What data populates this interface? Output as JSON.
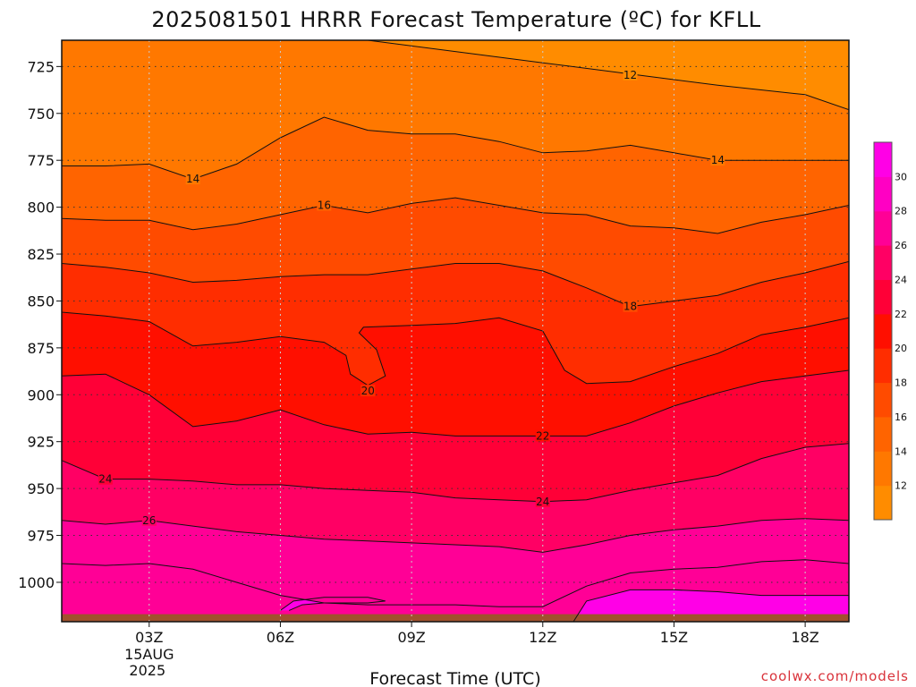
{
  "chart_data": {
    "type": "heatmap",
    "title": "2025081501 HRRR Forecast Temperature (ºC) for KFLL",
    "xlabel": "Forecast Time (UTC)",
    "ylabel": "",
    "credit": "coolwx.com/models",
    "x_ticks": [
      {
        "hour": 3,
        "label": "03Z",
        "sub1": "15AUG",
        "sub2": "2025"
      },
      {
        "hour": 6,
        "label": "06Z"
      },
      {
        "hour": 9,
        "label": "09Z"
      },
      {
        "hour": 12,
        "label": "12Z"
      },
      {
        "hour": 15,
        "label": "15Z"
      },
      {
        "hour": 18,
        "label": "18Z"
      }
    ],
    "xlim": [
      1,
      19
    ],
    "y_ticks": [
      725,
      750,
      775,
      800,
      825,
      850,
      875,
      900,
      925,
      950,
      975,
      1000
    ],
    "ylim_hpa": [
      711,
      1021
    ],
    "y_scale": "linear, pressure increasing downward",
    "grid": "dotted",
    "surface_pressure_hpa": 1017,
    "surface_color": "#a0522d",
    "contour_interval": 2,
    "colorbar": {
      "placement": "right",
      "levels": [
        10,
        12,
        14,
        16,
        18,
        20,
        22,
        24,
        26,
        28,
        30,
        32
      ],
      "labels": [
        12,
        14,
        16,
        18,
        20,
        22,
        24,
        26,
        28,
        30
      ],
      "colors": [
        "#ff8c00",
        "#ff7800",
        "#ff6400",
        "#ff4b00",
        "#ff2d00",
        "#ff0f00",
        "#ff0037",
        "#ff0064",
        "#ff0096",
        "#ff00c3",
        "#ff00e6"
      ]
    },
    "isotherms": [
      {
        "temp": 12,
        "label_at": [
          [
            14.0,
            729.5
          ]
        ],
        "points": [
          [
            4.0,
            707
          ],
          [
            6.0,
            711
          ],
          [
            8.0,
            711
          ],
          [
            10.0,
            717
          ],
          [
            12.0,
            723
          ],
          [
            14.0,
            729
          ],
          [
            16.0,
            735
          ],
          [
            18.0,
            740
          ],
          [
            19.0,
            748
          ]
        ]
      },
      {
        "temp": 14,
        "label_at": [
          [
            4.0,
            785
          ],
          [
            16.0,
            775
          ]
        ],
        "points": [
          [
            1.0,
            778
          ],
          [
            2.0,
            778
          ],
          [
            3.0,
            777
          ],
          [
            4.0,
            785
          ],
          [
            5.0,
            777
          ],
          [
            6.0,
            763
          ],
          [
            7.0,
            752
          ],
          [
            8.0,
            759
          ],
          [
            9.0,
            761
          ],
          [
            10.0,
            761
          ],
          [
            11.0,
            765
          ],
          [
            12.0,
            771
          ],
          [
            13.0,
            770
          ],
          [
            14.0,
            767
          ],
          [
            15.0,
            771
          ],
          [
            16.0,
            775
          ],
          [
            17.0,
            775
          ],
          [
            18.0,
            775
          ],
          [
            19.0,
            775
          ]
        ]
      },
      {
        "temp": 16,
        "label_at": [
          [
            7.0,
            799
          ]
        ],
        "points": [
          [
            1.0,
            806
          ],
          [
            2.0,
            807
          ],
          [
            3.0,
            807
          ],
          [
            4.0,
            812
          ],
          [
            5.0,
            809
          ],
          [
            6.0,
            804
          ],
          [
            7.0,
            799
          ],
          [
            8.0,
            803
          ],
          [
            9.0,
            798
          ],
          [
            10.0,
            795
          ],
          [
            11.0,
            799
          ],
          [
            12.0,
            803
          ],
          [
            13.0,
            804
          ],
          [
            14.0,
            810
          ],
          [
            15.0,
            811
          ],
          [
            16.0,
            814
          ],
          [
            17.0,
            808
          ],
          [
            18.0,
            804
          ],
          [
            19.0,
            799
          ]
        ]
      },
      {
        "temp": 18,
        "label_at": [
          [
            14.0,
            853
          ]
        ],
        "points": [
          [
            1.0,
            830
          ],
          [
            2.0,
            832
          ],
          [
            3.0,
            835
          ],
          [
            4.0,
            840
          ],
          [
            5.0,
            839
          ],
          [
            6.0,
            837
          ],
          [
            7.0,
            836
          ],
          [
            8.0,
            836
          ],
          [
            9.0,
            833
          ],
          [
            10.0,
            830
          ],
          [
            11.0,
            830
          ],
          [
            12.0,
            834
          ],
          [
            13.0,
            843
          ],
          [
            14.0,
            853
          ],
          [
            15.0,
            850
          ],
          [
            16.0,
            847
          ],
          [
            17.0,
            840
          ],
          [
            18.0,
            835
          ],
          [
            19.0,
            829
          ]
        ]
      },
      {
        "temp": 20,
        "label_at": [
          [
            8.0,
            898
          ]
        ],
        "points": [
          [
            1.0,
            856
          ],
          [
            2.0,
            858
          ],
          [
            3.0,
            861
          ],
          [
            4.0,
            874
          ],
          [
            5.0,
            872
          ],
          [
            6.0,
            869
          ],
          [
            7.0,
            872
          ],
          [
            7.5,
            879
          ],
          [
            7.6,
            889
          ],
          [
            8.0,
            895
          ],
          [
            8.4,
            890
          ],
          [
            8.2,
            876
          ],
          [
            7.8,
            867
          ],
          [
            7.9,
            864
          ],
          [
            9.0,
            863
          ],
          [
            10.0,
            862
          ],
          [
            11.0,
            859
          ],
          [
            12.0,
            866
          ],
          [
            12.5,
            887
          ],
          [
            13.0,
            894
          ],
          [
            14.0,
            893
          ],
          [
            15.0,
            885
          ],
          [
            16.0,
            878
          ],
          [
            17.0,
            868
          ],
          [
            18.0,
            864
          ],
          [
            19.0,
            859
          ]
        ]
      },
      {
        "temp": 22,
        "label_at": [
          [
            12.0,
            922
          ]
        ],
        "points": [
          [
            1.0,
            890
          ],
          [
            2.0,
            889
          ],
          [
            3.0,
            900
          ],
          [
            4.0,
            917
          ],
          [
            5.0,
            914
          ],
          [
            6.0,
            908
          ],
          [
            7.0,
            916
          ],
          [
            8.0,
            921
          ],
          [
            9.0,
            920
          ],
          [
            10.0,
            922
          ],
          [
            11.0,
            922
          ],
          [
            12.0,
            922
          ],
          [
            13.0,
            922
          ],
          [
            14.0,
            915
          ],
          [
            15.0,
            906
          ],
          [
            16.0,
            899
          ],
          [
            17.0,
            893
          ],
          [
            18.0,
            890
          ],
          [
            19.0,
            887
          ]
        ]
      },
      {
        "temp": 24,
        "label_at": [
          [
            2.0,
            945
          ],
          [
            12.0,
            957
          ]
        ],
        "points": [
          [
            1.0,
            935
          ],
          [
            2.0,
            945
          ],
          [
            3.0,
            945
          ],
          [
            4.0,
            946
          ],
          [
            5.0,
            948
          ],
          [
            6.0,
            948
          ],
          [
            7.0,
            950
          ],
          [
            8.0,
            951
          ],
          [
            9.0,
            952
          ],
          [
            10.0,
            955
          ],
          [
            11.0,
            956
          ],
          [
            12.0,
            957
          ],
          [
            13.0,
            956
          ],
          [
            14.0,
            951
          ],
          [
            15.0,
            947
          ],
          [
            16.0,
            943
          ],
          [
            17.0,
            934
          ],
          [
            18.0,
            928
          ],
          [
            19.0,
            926
          ]
        ]
      },
      {
        "temp": 26,
        "label_at": [
          [
            3.0,
            967
          ]
        ],
        "points": [
          [
            1.0,
            967
          ],
          [
            2.0,
            969
          ],
          [
            3.0,
            967
          ],
          [
            4.0,
            970
          ],
          [
            5.0,
            973
          ],
          [
            6.0,
            975
          ],
          [
            7.0,
            977
          ],
          [
            8.0,
            978
          ],
          [
            9.0,
            979
          ],
          [
            10.0,
            980
          ],
          [
            11.0,
            981
          ],
          [
            12.0,
            984
          ],
          [
            13.0,
            980
          ],
          [
            14.0,
            975
          ],
          [
            15.0,
            972
          ],
          [
            16.0,
            970
          ],
          [
            17.0,
            967
          ],
          [
            18.0,
            966
          ],
          [
            19.0,
            967
          ]
        ]
      },
      {
        "temp": 28,
        "points": [
          [
            1.0,
            990
          ],
          [
            2.0,
            991
          ],
          [
            3.0,
            990
          ],
          [
            4.0,
            993
          ],
          [
            5.0,
            1000
          ],
          [
            6.0,
            1007
          ],
          [
            7.0,
            1011
          ],
          [
            8.0,
            1012
          ],
          [
            9.0,
            1012
          ],
          [
            10.0,
            1012
          ],
          [
            11.0,
            1013
          ],
          [
            12.0,
            1013
          ],
          [
            13.0,
            1002
          ],
          [
            14.0,
            995
          ],
          [
            15.0,
            993
          ],
          [
            16.0,
            992
          ],
          [
            17.0,
            989
          ],
          [
            18.0,
            988
          ],
          [
            19.0,
            990
          ]
        ]
      },
      {
        "temp": 30,
        "points": [
          [
            6.0,
            1015
          ],
          [
            6.3,
            1010
          ],
          [
            7.0,
            1008
          ],
          [
            8.0,
            1008
          ],
          [
            8.4,
            1010
          ],
          [
            8.0,
            1011
          ],
          [
            7.0,
            1011
          ],
          [
            6.5,
            1012
          ],
          [
            6.2,
            1015
          ]
        ]
      },
      {
        "temp": 30,
        "points": [
          [
            12.7,
            1021
          ],
          [
            13.0,
            1010
          ],
          [
            14.0,
            1004
          ],
          [
            15.0,
            1004
          ],
          [
            16.0,
            1005
          ],
          [
            17.0,
            1007
          ],
          [
            18.0,
            1007
          ],
          [
            19.0,
            1007
          ]
        ]
      }
    ]
  }
}
